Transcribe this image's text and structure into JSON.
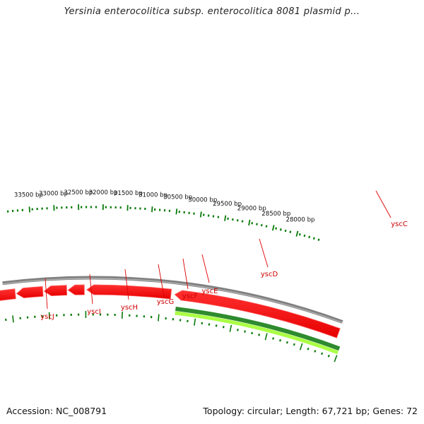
{
  "title": "Yersinia enterocolitica subsp. enterocolitica 8081 plasmid p...",
  "footer": {
    "accession": "Accession: NC_008791",
    "summary": "Topology: circular; Length: 67,721 bp; Genes: 72"
  },
  "colors": {
    "backbone": "#808080",
    "gene_forward": "#ff0000",
    "gene_reverse": "#ff0000",
    "feature_green_dark": "#2e8b2e",
    "feature_green_light": "#aaff44",
    "ticks": "#0a7a0a",
    "gene_label": "#cc0000"
  },
  "scale": {
    "tick_labels": [
      "28000 bp",
      "28500 bp",
      "29000 bp",
      "29500 bp",
      "30000 bp",
      "30500 bp",
      "31000 bp",
      "31500 bp",
      "32000 bp",
      "32500 bp",
      "33000 bp",
      "33500 bp"
    ]
  },
  "genes": [
    {
      "name": "yscC"
    },
    {
      "name": "yscD"
    },
    {
      "name": "yscE"
    },
    {
      "name": "yscF"
    },
    {
      "name": "yscG"
    },
    {
      "name": "yscH"
    },
    {
      "name": "yscI"
    },
    {
      "name": "yscJ"
    }
  ]
}
